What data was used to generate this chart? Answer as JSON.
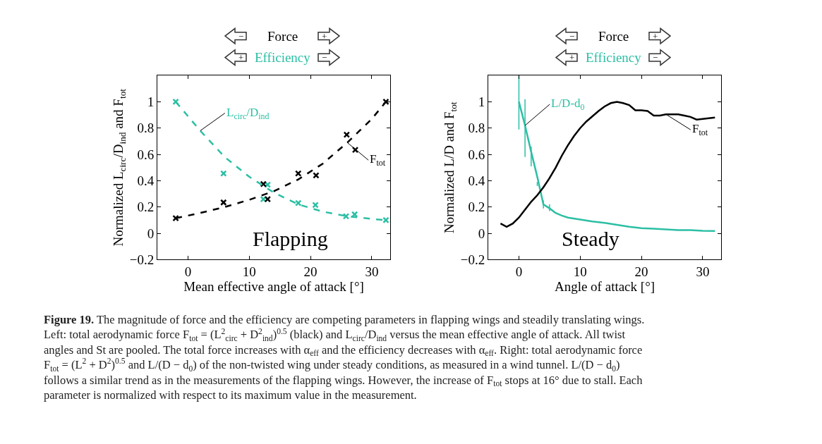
{
  "chart_data": [
    {
      "type": "scatter",
      "xlabel": "Mean effective angle of attack [°]",
      "ylabel": "Normalized L$_{circ}$/D$_{ind}$ and F$_{tot}$",
      "xlim": [
        -5,
        33
      ],
      "xticks": [
        0,
        10,
        20,
        30
      ],
      "ylim": [
        -0.2,
        1.2
      ],
      "yticks": [
        {
          "value": -0.2,
          "label": "−0.2"
        },
        0,
        0.2,
        0.4,
        0.6,
        0.8,
        1
      ],
      "grid": false,
      "annotations": [
        "Force",
        "Efficiency",
        "−",
        "+",
        "+",
        "−",
        "Flapping",
        "Figure 19. The magnitude of force and the efficiency are competing parameters in flapping wings and steadily translating wings.\nLeft: total aerodynamic force F$_{tot}$ = (L$^{2}$$_{circ}$ + D$^{2}$$_{ind}$)$^{0.5}$ (black) and L$_{circ}$/D$_{ind}$ versus the mean effective angle of attack. All twist\nangles and St are pooled. The total force increases with α$_{eff}$ and the efficiency decreases with α$_{eff}$. Right: total aerodynamic force\nF$_{tot}$ = (L$^{2}$ + D$^{2}$)$^{0.5}$ and L/(D − d$_{0}$) of the non-twisted wing under steady conditions, as measured in a wind tunnel. L/(D − d$_{0}$)\nfollows a similar trend as in the measurements of the flapping wings. However, the increase of F$_{tot}$ stops at 16° due to stall. Each\nparameter is normalized with respect to its maximum value in the measurement."
      ],
      "series": [
        {
          "color": "#2bbfa4",
          "marker": "cross",
          "x": [
            -2,
            5.8,
            12.3,
            13,
            18,
            20.8,
            25.8,
            27.2,
            32.3
          ],
          "values": [
            1.0,
            0.455,
            0.26,
            0.37,
            0.23,
            0.215,
            0.13,
            0.145,
            0.1
          ]
        },
        {
          "color": "#000000",
          "marker": "cross",
          "x": [
            -2,
            5.8,
            12.3,
            13,
            18,
            20.9,
            25.9,
            27.3,
            32.3
          ],
          "values": [
            0.115,
            0.235,
            0.375,
            0.26,
            0.455,
            0.44,
            0.75,
            0.635,
            1.0
          ]
        },
        {
          "type": "line",
          "name": "L$_{circ}$/D$_{ind}$",
          "color": "#2bbfa4",
          "line_style": "dashed",
          "x": [
            -2,
            2,
            6,
            10,
            14,
            18,
            22,
            26,
            30,
            32.3
          ],
          "values": [
            1.0,
            0.78,
            0.58,
            0.43,
            0.31,
            0.22,
            0.165,
            0.13,
            0.11,
            0.1
          ]
        },
        {
          "type": "line",
          "name": "F$_{tot}$",
          "color": "#000000",
          "line_style": "dashed",
          "x": [
            -2,
            2,
            6,
            10,
            14,
            18,
            22,
            26,
            30,
            32.3
          ],
          "values": [
            0.115,
            0.155,
            0.2,
            0.255,
            0.32,
            0.41,
            0.53,
            0.69,
            0.87,
            1.0
          ]
        }
      ]
    },
    {
      "type": "line",
      "xlabel": "Angle of attack [°]",
      "ylabel": "Normalized L/D and F$_{tot}$",
      "xlim": [
        -5,
        33
      ],
      "xticks": [
        0,
        10,
        20,
        30
      ],
      "ylim": [
        -0.2,
        1.2
      ],
      "yticks": [
        {
          "value": -0.2,
          "label": "−0.2"
        },
        0,
        0.2,
        0.4,
        0.6,
        0.8,
        1
      ],
      "grid": false,
      "annotations": [
        "Force",
        "Efficiency",
        "−",
        "+",
        "+",
        "−",
        "Steady"
      ],
      "series": [
        {
          "name": "L/D-d$_{0}$",
          "color": "#2bbfa4",
          "line_style": "solid",
          "x": [
            0,
            1,
            2,
            3,
            4,
            5,
            6,
            7,
            8,
            10,
            12,
            14,
            16,
            18,
            20,
            22,
            24,
            26,
            28,
            30,
            32
          ],
          "values": [
            1.0,
            0.82,
            0.62,
            0.43,
            0.22,
            0.19,
            0.155,
            0.135,
            0.12,
            0.105,
            0.09,
            0.08,
            0.065,
            0.05,
            0.04,
            0.035,
            0.03,
            0.025,
            0.025,
            0.02,
            0.018
          ],
          "errors": [
            [
              0.79,
              1.2
            ],
            [
              0.58,
              1.02
            ],
            [
              0.51,
              0.66
            ],
            [
              0.36,
              0.39
            ],
            [
              0.19,
              0.25
            ],
            [
              0.17,
              0.22
            ],
            null,
            null,
            null,
            null,
            null,
            null,
            null,
            null,
            null,
            null,
            null,
            null,
            null,
            null,
            null
          ]
        },
        {
          "name": "F$_{tot}$",
          "color": "#000000",
          "line_style": "solid",
          "x": [
            -3,
            -2,
            -1,
            0,
            1,
            2,
            3,
            4,
            5,
            6,
            7,
            8,
            9,
            10,
            11,
            12,
            13,
            14,
            15,
            16,
            17,
            18,
            19,
            20,
            21,
            22,
            23,
            24,
            25,
            26,
            27,
            28,
            29,
            30,
            31,
            32
          ],
          "values": [
            0.075,
            0.05,
            0.075,
            0.12,
            0.18,
            0.24,
            0.29,
            0.35,
            0.42,
            0.5,
            0.59,
            0.67,
            0.74,
            0.8,
            0.85,
            0.89,
            0.93,
            0.965,
            0.99,
            1.0,
            0.99,
            0.975,
            0.935,
            0.935,
            0.93,
            0.895,
            0.895,
            0.905,
            0.905,
            0.905,
            0.895,
            0.885,
            0.865,
            0.87,
            0.875,
            0.88
          ]
        }
      ]
    }
  ]
}
